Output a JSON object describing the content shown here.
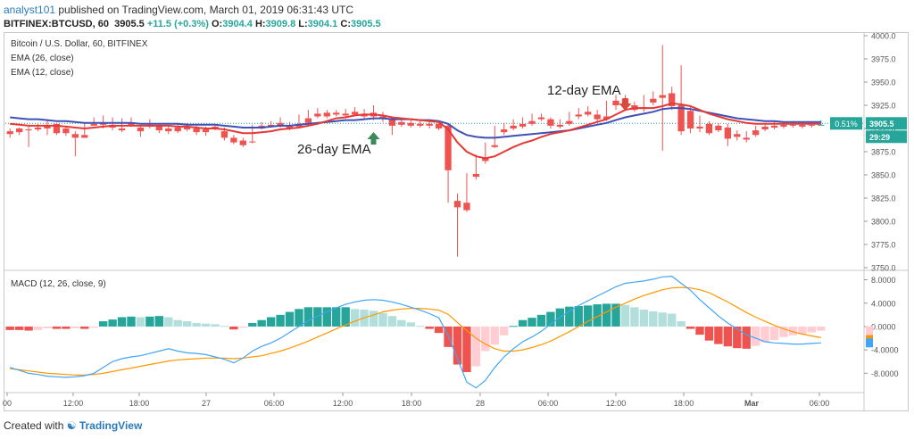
{
  "header": {
    "user": "analyst101",
    "published": " published on TradingView.com, March 01, 2019 06:31:43 UTC",
    "symbol": "BITFINEX:BTCUSD, 60",
    "last": "3905.5",
    "change": "+11.5 (+0.3%)",
    "o_label": "O:",
    "o": "3904.4",
    "h_label": "H:",
    "h": "3909.8",
    "l_label": "L:",
    "l": "3904.1",
    "c_label": "C:",
    "c": "3905.5"
  },
  "legend": {
    "title": "Bitcoin / U.S. Dollar, 60, BITFINEX",
    "ema26": "EMA (26, close)",
    "ema12": "EMA (12, close)",
    "macd": "MACD (12, 26, close, 9)"
  },
  "footer": {
    "prefix": "Created with",
    "brand": "TradingView"
  },
  "colors": {
    "up": "#26a69a",
    "down": "#ef5350",
    "ema26": "#3f51b5",
    "ema12": "#e53935",
    "macd": "#42a5f5",
    "signal": "#ff9800",
    "hist_up": "#26a69a",
    "hist_up_light": "#b2dfdb",
    "hist_down": "#ef5350",
    "hist_down_light": "#ffcdd2"
  },
  "chart_data": {
    "type": "candlestick",
    "x_ticks": [
      "00",
      "12:00",
      "18:00",
      "27",
      "06:00",
      "12:00",
      "18:00",
      "28",
      "06:00",
      "12:00",
      "18:00",
      "Mar",
      "06:00"
    ],
    "price_axis": {
      "ticks": [
        "4000.0",
        "3975.0",
        "3950.0",
        "3925.0",
        "3900.0",
        "3875.0",
        "3850.0",
        "3825.0",
        "3800.0",
        "3775.0",
        "3750.0"
      ],
      "ylim": [
        3750,
        4000
      ]
    },
    "price_label": "3905.5",
    "pct_label": "0.51%",
    "countdown": "29:29",
    "annotations": [
      {
        "text": "26-day EMA",
        "arrow": "up"
      },
      {
        "text": "12-day EMA",
        "arrow": "down"
      }
    ],
    "candles": [
      [
        3897,
        3900,
        3894,
        3890
      ],
      [
        3900,
        3901,
        3896,
        3893
      ],
      [
        3899,
        3902,
        3898,
        3880
      ],
      [
        3901,
        3905,
        3899,
        3897
      ],
      [
        3903,
        3910,
        3900,
        3893
      ],
      [
        3905,
        3905,
        3895,
        3893
      ],
      [
        3900,
        3902,
        3895,
        3892
      ],
      [
        3894,
        3897,
        3890,
        3870
      ],
      [
        3893,
        3906,
        3890,
        3890
      ],
      [
        3905,
        3912,
        3903,
        3903
      ],
      [
        3906,
        3914,
        3904,
        3900
      ],
      [
        3904,
        3912,
        3901,
        3898
      ],
      [
        3900,
        3911,
        3898,
        3896
      ],
      [
        3906,
        3912,
        3903,
        3902
      ],
      [
        3901,
        3903,
        3897,
        3891
      ],
      [
        3904,
        3910,
        3902,
        3900
      ],
      [
        3903,
        3905,
        3898,
        3895
      ],
      [
        3900,
        3902,
        3897,
        3894
      ],
      [
        3901,
        3906,
        3897,
        3895
      ],
      [
        3902,
        3906,
        3899,
        3897
      ],
      [
        3900,
        3903,
        3896,
        3893
      ],
      [
        3899,
        3902,
        3896,
        3892
      ],
      [
        3902,
        3905,
        3900,
        3898
      ],
      [
        3897,
        3901,
        3890,
        3887
      ],
      [
        3890,
        3893,
        3885,
        3883
      ],
      [
        3887,
        3890,
        3882,
        3880
      ],
      [
        3886,
        3904,
        3885,
        3884
      ],
      [
        3903,
        3907,
        3900,
        3899
      ],
      [
        3904,
        3908,
        3902,
        3901
      ],
      [
        3906,
        3912,
        3902,
        3901
      ],
      [
        3903,
        3907,
        3900,
        3898
      ],
      [
        3905,
        3915,
        3902,
        3901
      ],
      [
        3911,
        3920,
        3906,
        3904
      ],
      [
        3916,
        3922,
        3913,
        3911
      ],
      [
        3917,
        3920,
        3913,
        3911
      ],
      [
        3917,
        3920,
        3915,
        3913
      ],
      [
        3916,
        3921,
        3914,
        3911
      ],
      [
        3918,
        3923,
        3915,
        3913
      ],
      [
        3916,
        3921,
        3913,
        3910
      ],
      [
        3917,
        3925,
        3913,
        3909
      ],
      [
        3913,
        3918,
        3910,
        3907
      ],
      [
        3910,
        3912,
        3903,
        3893
      ],
      [
        3907,
        3909,
        3904,
        3902
      ],
      [
        3906,
        3909,
        3903,
        3901
      ],
      [
        3905,
        3910,
        3903,
        3901
      ],
      [
        3905,
        3908,
        3903,
        3900
      ],
      [
        3905,
        3907,
        3900,
        3898
      ],
      [
        3903,
        3905,
        3855,
        3820
      ],
      [
        3822,
        3830,
        3815,
        3762
      ],
      [
        3820,
        3852,
        3812,
        3810
      ],
      [
        3851,
        3872,
        3848,
        3845
      ],
      [
        3868,
        3885,
        3865,
        3862
      ],
      [
        3882,
        3903,
        3880,
        3879
      ],
      [
        3899,
        3906,
        3896,
        3893
      ],
      [
        3903,
        3910,
        3900,
        3898
      ],
      [
        3905,
        3912,
        3902,
        3900
      ],
      [
        3908,
        3916,
        3905,
        3903
      ],
      [
        3912,
        3916,
        3910,
        3908
      ],
      [
        3910,
        3912,
        3903,
        3900
      ],
      [
        3904,
        3910,
        3902,
        3900
      ],
      [
        3908,
        3918,
        3905,
        3903
      ],
      [
        3915,
        3922,
        3913,
        3910
      ],
      [
        3918,
        3924,
        3915,
        3913
      ],
      [
        3915,
        3920,
        3910,
        3908
      ],
      [
        3913,
        3930,
        3910,
        3908
      ],
      [
        3930,
        3936,
        3925,
        3920
      ],
      [
        3932,
        3936,
        3925,
        3922
      ],
      [
        3925,
        3929,
        3920,
        3918
      ],
      [
        3923,
        3936,
        3921,
        3918
      ],
      [
        3932,
        3940,
        3928,
        3925
      ],
      [
        3936,
        3990,
        3933,
        3876
      ],
      [
        3938,
        3945,
        3924,
        3920
      ],
      [
        3925,
        3968,
        3897,
        3893
      ],
      [
        3919,
        3924,
        3900,
        3895
      ],
      [
        3902,
        3914,
        3900,
        3896
      ],
      [
        3905,
        3908,
        3895,
        3893
      ],
      [
        3903,
        3906,
        3898,
        3896
      ],
      [
        3901,
        3905,
        3889,
        3881
      ],
      [
        3894,
        3898,
        3891,
        3887
      ],
      [
        3890,
        3897,
        3888,
        3885
      ],
      [
        3898,
        3903,
        3893,
        3891
      ],
      [
        3902,
        3906,
        3899,
        3897
      ],
      [
        3903,
        3908,
        3901,
        3899
      ],
      [
        3904,
        3907,
        3902,
        3900
      ],
      [
        3904,
        3908,
        3903,
        3901
      ],
      [
        3904,
        3907,
        3902,
        3900
      ],
      [
        3904,
        3907,
        3903,
        3901
      ],
      [
        3904,
        3909,
        3904,
        3904
      ]
    ],
    "ema26": [
      3912,
      3911,
      3910,
      3910,
      3909,
      3908,
      3908,
      3907,
      3906,
      3906,
      3906,
      3906,
      3906,
      3906,
      3905,
      3905,
      3905,
      3905,
      3905,
      3904,
      3904,
      3904,
      3904,
      3903,
      3902,
      3901,
      3901,
      3901,
      3902,
      3903,
      3903,
      3904,
      3905,
      3906,
      3907,
      3908,
      3909,
      3909,
      3910,
      3911,
      3911,
      3910,
      3910,
      3910,
      3909,
      3909,
      3908,
      3905,
      3898,
      3893,
      3891,
      3890,
      3890,
      3891,
      3892,
      3893,
      3894,
      3895,
      3896,
      3897,
      3898,
      3900,
      3902,
      3904,
      3906,
      3909,
      3912,
      3914,
      3916,
      3918,
      3921,
      3922,
      3922,
      3921,
      3919,
      3917,
      3915,
      3913,
      3911,
      3910,
      3909,
      3908,
      3908,
      3907,
      3907,
      3907,
      3907,
      3907
    ],
    "ema12": [
      3905,
      3904,
      3903,
      3903,
      3903,
      3903,
      3902,
      3901,
      3900,
      3901,
      3902,
      3903,
      3903,
      3903,
      3903,
      3903,
      3903,
      3903,
      3902,
      3902,
      3901,
      3900,
      3900,
      3899,
      3897,
      3895,
      3895,
      3896,
      3897,
      3899,
      3900,
      3901,
      3903,
      3905,
      3908,
      3911,
      3912,
      3914,
      3915,
      3915,
      3914,
      3912,
      3911,
      3910,
      3909,
      3908,
      3907,
      3899,
      3885,
      3875,
      3870,
      3868,
      3870,
      3875,
      3880,
      3884,
      3887,
      3891,
      3894,
      3896,
      3898,
      3901,
      3904,
      3907,
      3910,
      3915,
      3920,
      3922,
      3922,
      3922,
      3924,
      3927,
      3926,
      3924,
      3920,
      3916,
      3913,
      3910,
      3908,
      3906,
      3905,
      3905,
      3905,
      3905,
      3905,
      3905,
      3905,
      3905
    ],
    "macd_axis": {
      "ticks": [
        "8.0000",
        "4.0000",
        "0.0000",
        "-4.0000",
        "-8.0000"
      ],
      "ylim": [
        -11,
        9
      ]
    },
    "macd": [
      -7,
      -7.5,
      -8,
      -8.2,
      -8.5,
      -8.6,
      -8.7,
      -8.6,
      -8.4,
      -8,
      -7,
      -6,
      -5.5,
      -5.2,
      -5,
      -4.6,
      -4.2,
      -3.8,
      -4.2,
      -4.5,
      -4.6,
      -4.8,
      -5.2,
      -5.6,
      -6.2,
      -5.4,
      -4.2,
      -3.4,
      -2.8,
      -2,
      -1,
      0,
      1,
      1.8,
      2.5,
      3.2,
      3.8,
      4.2,
      4.5,
      4.6,
      4.5,
      4.2,
      3.8,
      3.3,
      2.8,
      2.2,
      1.5,
      -1.5,
      -5.5,
      -9.5,
      -10.5,
      -9.2,
      -7,
      -5.2,
      -3.8,
      -2.6,
      -1.8,
      -0.8,
      0.4,
      1.6,
      2.6,
      3.6,
      4.4,
      5.2,
      6,
      6.8,
      7.4,
      7.6,
      7.8,
      8.1,
      8.5,
      8.6,
      7.4,
      6.2,
      4.6,
      3.2,
      1.8,
      0.6,
      -0.4,
      -1.4,
      -2,
      -2.6,
      -2.8,
      -2.9,
      -3,
      -3,
      -2.9,
      -2.8
    ],
    "signal": [
      -7.2,
      -7.4,
      -7.6,
      -7.8,
      -8,
      -8.1,
      -8.2,
      -8.3,
      -8.3,
      -8.2,
      -8,
      -7.7,
      -7.4,
      -7.1,
      -6.8,
      -6.5,
      -6.2,
      -5.9,
      -5.7,
      -5.6,
      -5.5,
      -5.4,
      -5.4,
      -5.4,
      -5.5,
      -5.4,
      -5.2,
      -5,
      -4.6,
      -4.2,
      -3.7,
      -3.1,
      -2.5,
      -1.8,
      -1.1,
      -0.4,
      0.3,
      0.9,
      1.5,
      2,
      2.5,
      2.8,
      3,
      3.1,
      3.1,
      3,
      2.8,
      2.1,
      0.7,
      -0.7,
      -2,
      -3,
      -3.8,
      -4.2,
      -4.2,
      -4,
      -3.6,
      -3.1,
      -2.5,
      -1.7,
      -0.9,
      0,
      0.9,
      1.7,
      2.5,
      3.3,
      4,
      4.7,
      5.3,
      5.8,
      6.3,
      6.6,
      6.7,
      6.6,
      6.3,
      5.8,
      5,
      4.2,
      3.3,
      2.4,
      1.6,
      0.9,
      0.2,
      -0.4,
      -0.9,
      -1.3,
      -1.6,
      -1.9
    ],
    "histogram": [
      -0.6,
      -0.6,
      -0.7,
      -0.6,
      -0.3,
      -0.4,
      -0.4,
      -0.3,
      -0.4,
      -0.2,
      0.9,
      1.2,
      1.6,
      1.7,
      1.6,
      1.7,
      1.8,
      1.6,
      1.1,
      0.9,
      0.6,
      0.5,
      0.4,
      0.1,
      -0.5,
      -0.2,
      0.6,
      1.1,
      1.6,
      2.0,
      2.5,
      3.0,
      3.3,
      3.3,
      3.3,
      3.3,
      3.3,
      3.0,
      2.9,
      2.7,
      2.3,
      1.8,
      1.1,
      0.7,
      0.1,
      -0.4,
      -1.1,
      -3.5,
      -6.5,
      -7.8,
      -6.8,
      -4.2,
      -3.1,
      -1.5,
      0.1,
      1.1,
      1.5,
      2.0,
      2.5,
      3.1,
      3.4,
      3.5,
      3.6,
      3.8,
      3.9,
      3.9,
      3.7,
      3.3,
      2.9,
      2.6,
      2.4,
      2.2,
      0.9,
      -0.4,
      -1.4,
      -2.4,
      -3.0,
      -3.4,
      -3.7,
      -3.8,
      -3.3,
      -2.7,
      -2.3,
      -1.8,
      -1.5,
      -1.3,
      -1.0,
      -0.7
    ],
    "macd_last_hist": -0.7
  }
}
